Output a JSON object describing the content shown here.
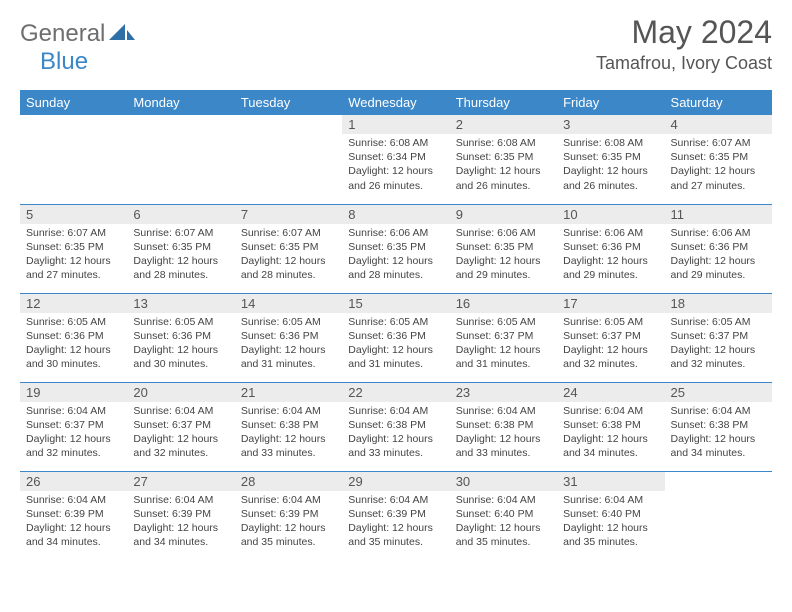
{
  "brand": {
    "part1": "General",
    "part2": "Blue"
  },
  "title": "May 2024",
  "location": "Tamafrou, Ivory Coast",
  "dow_bg": "#3b87c8",
  "dow_fg": "#ffffff",
  "daynum_bg": "#ececec",
  "rule_color": "#3b87c8",
  "text_color": "#444444",
  "dow": [
    "Sunday",
    "Monday",
    "Tuesday",
    "Wednesday",
    "Thursday",
    "Friday",
    "Saturday"
  ],
  "weeks": [
    [
      {
        "n": "",
        "l1": "",
        "l2": "",
        "l3": "",
        "l4": ""
      },
      {
        "n": "",
        "l1": "",
        "l2": "",
        "l3": "",
        "l4": ""
      },
      {
        "n": "",
        "l1": "",
        "l2": "",
        "l3": "",
        "l4": ""
      },
      {
        "n": "1",
        "l1": "Sunrise: 6:08 AM",
        "l2": "Sunset: 6:34 PM",
        "l3": "Daylight: 12 hours",
        "l4": "and 26 minutes."
      },
      {
        "n": "2",
        "l1": "Sunrise: 6:08 AM",
        "l2": "Sunset: 6:35 PM",
        "l3": "Daylight: 12 hours",
        "l4": "and 26 minutes."
      },
      {
        "n": "3",
        "l1": "Sunrise: 6:08 AM",
        "l2": "Sunset: 6:35 PM",
        "l3": "Daylight: 12 hours",
        "l4": "and 26 minutes."
      },
      {
        "n": "4",
        "l1": "Sunrise: 6:07 AM",
        "l2": "Sunset: 6:35 PM",
        "l3": "Daylight: 12 hours",
        "l4": "and 27 minutes."
      }
    ],
    [
      {
        "n": "5",
        "l1": "Sunrise: 6:07 AM",
        "l2": "Sunset: 6:35 PM",
        "l3": "Daylight: 12 hours",
        "l4": "and 27 minutes."
      },
      {
        "n": "6",
        "l1": "Sunrise: 6:07 AM",
        "l2": "Sunset: 6:35 PM",
        "l3": "Daylight: 12 hours",
        "l4": "and 28 minutes."
      },
      {
        "n": "7",
        "l1": "Sunrise: 6:07 AM",
        "l2": "Sunset: 6:35 PM",
        "l3": "Daylight: 12 hours",
        "l4": "and 28 minutes."
      },
      {
        "n": "8",
        "l1": "Sunrise: 6:06 AM",
        "l2": "Sunset: 6:35 PM",
        "l3": "Daylight: 12 hours",
        "l4": "and 28 minutes."
      },
      {
        "n": "9",
        "l1": "Sunrise: 6:06 AM",
        "l2": "Sunset: 6:35 PM",
        "l3": "Daylight: 12 hours",
        "l4": "and 29 minutes."
      },
      {
        "n": "10",
        "l1": "Sunrise: 6:06 AM",
        "l2": "Sunset: 6:36 PM",
        "l3": "Daylight: 12 hours",
        "l4": "and 29 minutes."
      },
      {
        "n": "11",
        "l1": "Sunrise: 6:06 AM",
        "l2": "Sunset: 6:36 PM",
        "l3": "Daylight: 12 hours",
        "l4": "and 29 minutes."
      }
    ],
    [
      {
        "n": "12",
        "l1": "Sunrise: 6:05 AM",
        "l2": "Sunset: 6:36 PM",
        "l3": "Daylight: 12 hours",
        "l4": "and 30 minutes."
      },
      {
        "n": "13",
        "l1": "Sunrise: 6:05 AM",
        "l2": "Sunset: 6:36 PM",
        "l3": "Daylight: 12 hours",
        "l4": "and 30 minutes."
      },
      {
        "n": "14",
        "l1": "Sunrise: 6:05 AM",
        "l2": "Sunset: 6:36 PM",
        "l3": "Daylight: 12 hours",
        "l4": "and 31 minutes."
      },
      {
        "n": "15",
        "l1": "Sunrise: 6:05 AM",
        "l2": "Sunset: 6:36 PM",
        "l3": "Daylight: 12 hours",
        "l4": "and 31 minutes."
      },
      {
        "n": "16",
        "l1": "Sunrise: 6:05 AM",
        "l2": "Sunset: 6:37 PM",
        "l3": "Daylight: 12 hours",
        "l4": "and 31 minutes."
      },
      {
        "n": "17",
        "l1": "Sunrise: 6:05 AM",
        "l2": "Sunset: 6:37 PM",
        "l3": "Daylight: 12 hours",
        "l4": "and 32 minutes."
      },
      {
        "n": "18",
        "l1": "Sunrise: 6:05 AM",
        "l2": "Sunset: 6:37 PM",
        "l3": "Daylight: 12 hours",
        "l4": "and 32 minutes."
      }
    ],
    [
      {
        "n": "19",
        "l1": "Sunrise: 6:04 AM",
        "l2": "Sunset: 6:37 PM",
        "l3": "Daylight: 12 hours",
        "l4": "and 32 minutes."
      },
      {
        "n": "20",
        "l1": "Sunrise: 6:04 AM",
        "l2": "Sunset: 6:37 PM",
        "l3": "Daylight: 12 hours",
        "l4": "and 32 minutes."
      },
      {
        "n": "21",
        "l1": "Sunrise: 6:04 AM",
        "l2": "Sunset: 6:38 PM",
        "l3": "Daylight: 12 hours",
        "l4": "and 33 minutes."
      },
      {
        "n": "22",
        "l1": "Sunrise: 6:04 AM",
        "l2": "Sunset: 6:38 PM",
        "l3": "Daylight: 12 hours",
        "l4": "and 33 minutes."
      },
      {
        "n": "23",
        "l1": "Sunrise: 6:04 AM",
        "l2": "Sunset: 6:38 PM",
        "l3": "Daylight: 12 hours",
        "l4": "and 33 minutes."
      },
      {
        "n": "24",
        "l1": "Sunrise: 6:04 AM",
        "l2": "Sunset: 6:38 PM",
        "l3": "Daylight: 12 hours",
        "l4": "and 34 minutes."
      },
      {
        "n": "25",
        "l1": "Sunrise: 6:04 AM",
        "l2": "Sunset: 6:38 PM",
        "l3": "Daylight: 12 hours",
        "l4": "and 34 minutes."
      }
    ],
    [
      {
        "n": "26",
        "l1": "Sunrise: 6:04 AM",
        "l2": "Sunset: 6:39 PM",
        "l3": "Daylight: 12 hours",
        "l4": "and 34 minutes."
      },
      {
        "n": "27",
        "l1": "Sunrise: 6:04 AM",
        "l2": "Sunset: 6:39 PM",
        "l3": "Daylight: 12 hours",
        "l4": "and 34 minutes."
      },
      {
        "n": "28",
        "l1": "Sunrise: 6:04 AM",
        "l2": "Sunset: 6:39 PM",
        "l3": "Daylight: 12 hours",
        "l4": "and 35 minutes."
      },
      {
        "n": "29",
        "l1": "Sunrise: 6:04 AM",
        "l2": "Sunset: 6:39 PM",
        "l3": "Daylight: 12 hours",
        "l4": "and 35 minutes."
      },
      {
        "n": "30",
        "l1": "Sunrise: 6:04 AM",
        "l2": "Sunset: 6:40 PM",
        "l3": "Daylight: 12 hours",
        "l4": "and 35 minutes."
      },
      {
        "n": "31",
        "l1": "Sunrise: 6:04 AM",
        "l2": "Sunset: 6:40 PM",
        "l3": "Daylight: 12 hours",
        "l4": "and 35 minutes."
      },
      {
        "n": "",
        "l1": "",
        "l2": "",
        "l3": "",
        "l4": ""
      }
    ]
  ]
}
